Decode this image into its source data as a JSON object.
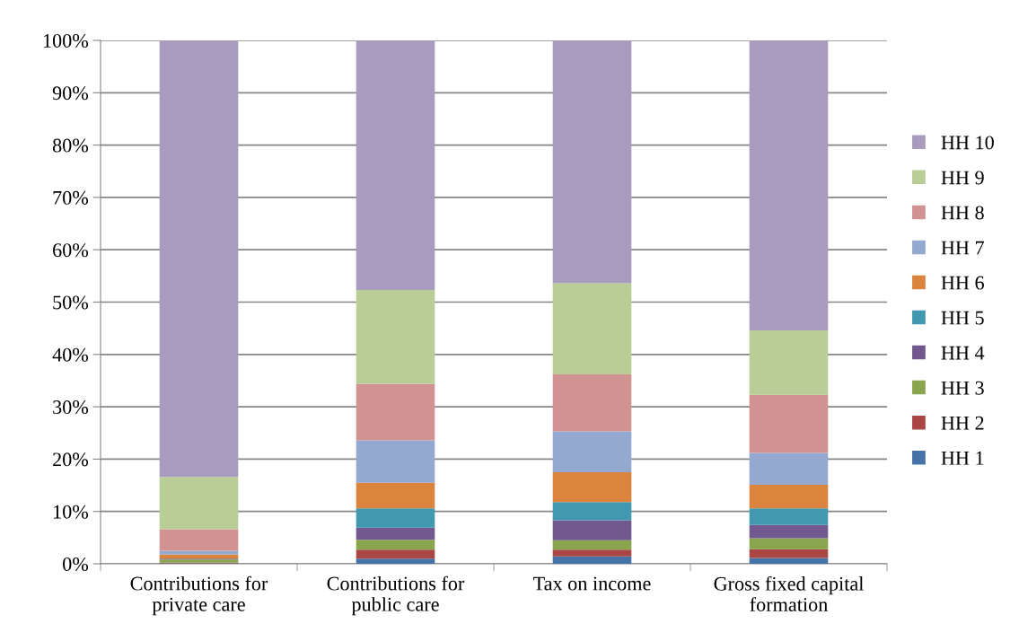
{
  "chart_data": {
    "type": "bar",
    "stacked": true,
    "categories": [
      "Contributions for\nprivate care",
      "Contributions for\npublic care",
      "Tax on income",
      "Gross fixed capital\nformation"
    ],
    "series": [
      {
        "name": "HH 1",
        "color": "#4572a7",
        "values": [
          0.1,
          1.0,
          1.4,
          1.1
        ]
      },
      {
        "name": "HH 2",
        "color": "#aa4643",
        "values": [
          0.1,
          1.7,
          1.3,
          1.7
        ]
      },
      {
        "name": "HH 3",
        "color": "#89a54e",
        "values": [
          0.6,
          1.9,
          1.8,
          2.1
        ]
      },
      {
        "name": "HH 4",
        "color": "#71588f",
        "values": [
          0.2,
          2.3,
          3.8,
          2.5
        ]
      },
      {
        "name": "HH 5",
        "color": "#4198af",
        "values": [
          null,
          3.7,
          3.5,
          3.2
        ]
      },
      {
        "name": "HH 6",
        "color": "#db843d",
        "values": [
          0.8,
          4.9,
          5.7,
          4.5
        ]
      },
      {
        "name": "HH 7",
        "color": "#93a9cf",
        "values": [
          0.7,
          8.1,
          7.8,
          6.1
        ]
      },
      {
        "name": "HH 8",
        "color": "#d19392",
        "values": [
          4.1,
          10.8,
          10.9,
          11.1
        ]
      },
      {
        "name": "HH 9",
        "color": "#b9cd96",
        "values": [
          10.0,
          17.9,
          17.4,
          12.3
        ]
      },
      {
        "name": "HH 10",
        "color": "#a99bbd",
        "values": [
          83.3,
          47.7,
          46.4,
          55.4
        ]
      }
    ],
    "ylim": [
      0,
      100
    ],
    "yticks": [
      {
        "value": 0,
        "label": "0%"
      },
      {
        "value": 10,
        "label": "10%"
      },
      {
        "value": 20,
        "label": "20%"
      },
      {
        "value": 30,
        "label": "30%"
      },
      {
        "value": 40,
        "label": "40%"
      },
      {
        "value": 50,
        "label": "50%"
      },
      {
        "value": 60,
        "label": "60%"
      },
      {
        "value": 70,
        "label": "70%"
      },
      {
        "value": 80,
        "label": "80%"
      },
      {
        "value": 90,
        "label": "90%"
      },
      {
        "value": 100,
        "label": "100%"
      }
    ],
    "grid": "y",
    "legend": "right"
  }
}
